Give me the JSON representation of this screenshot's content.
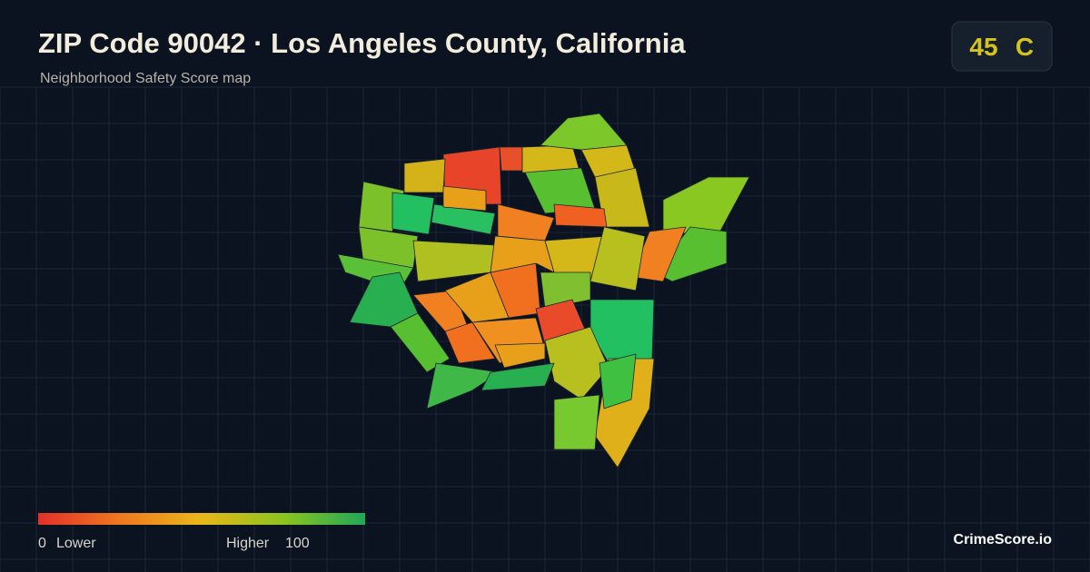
{
  "header": {
    "title": "ZIP Code 90042 · Los Angeles County, California",
    "subtitle": "Neighborhood Safety Score map"
  },
  "badge": {
    "score": "45",
    "grade": "C"
  },
  "legend": {
    "min": "0",
    "low_label": "Lower",
    "high_label": "Higher",
    "max": "100"
  },
  "footer": {
    "brand": "CrimeScore.io"
  }
}
